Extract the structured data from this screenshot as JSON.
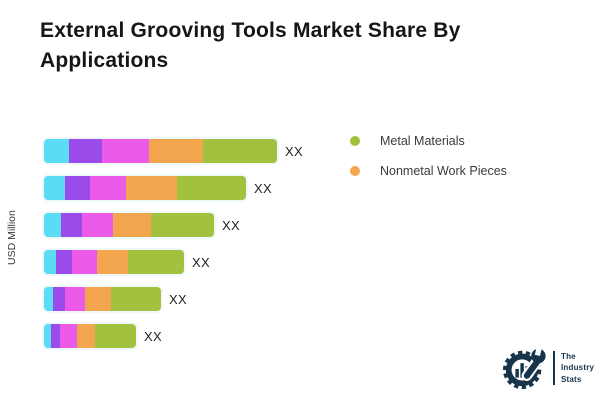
{
  "title": "External Grooving Tools Market Share By Applications",
  "ylabel": "USD Million",
  "legend": {
    "items": [
      {
        "label": "Metal Materials",
        "color": "#A2C13F"
      },
      {
        "label": "Nonmetal Work Pieces",
        "color": "#F3A64D"
      }
    ]
  },
  "logo": {
    "line1": "The",
    "line2": "Industry",
    "line3": "Stats",
    "color": "#16354A"
  },
  "chart_data": {
    "type": "bar",
    "orientation": "horizontal",
    "stacked": true,
    "title": "External Grooving Tools Market Share By Applications",
    "ylabel": "USD Million",
    "xlabel": "",
    "categories": [
      "",
      "",
      "",
      "",
      "",
      ""
    ],
    "value_labels": [
      "XX",
      "XX",
      "XX",
      "XX",
      "XX",
      "XX"
    ],
    "series": [
      {
        "name": "",
        "color": "#5ADCF5",
        "values": [
          25,
          21,
          17,
          12,
          9,
          7
        ]
      },
      {
        "name": "",
        "color": "#9A4BE9",
        "values": [
          33,
          25,
          21,
          16,
          12,
          9
        ]
      },
      {
        "name": "",
        "color": "#EB5AE9",
        "values": [
          47,
          36,
          31,
          25,
          20,
          17
        ]
      },
      {
        "name": "Nonmetal Work Pieces",
        "color": "#F3A64D",
        "values": [
          54,
          51,
          38,
          31,
          26,
          18
        ]
      },
      {
        "name": "Metal Materials",
        "color": "#A2C13F",
        "values": [
          74,
          69,
          63,
          56,
          50,
          41
        ]
      }
    ],
    "legend_entries": [
      "Metal Materials",
      "Nonmetal Work Pieces"
    ],
    "legend_position": "right-top",
    "grid": false,
    "axis_tick_labels_visible": false
  }
}
